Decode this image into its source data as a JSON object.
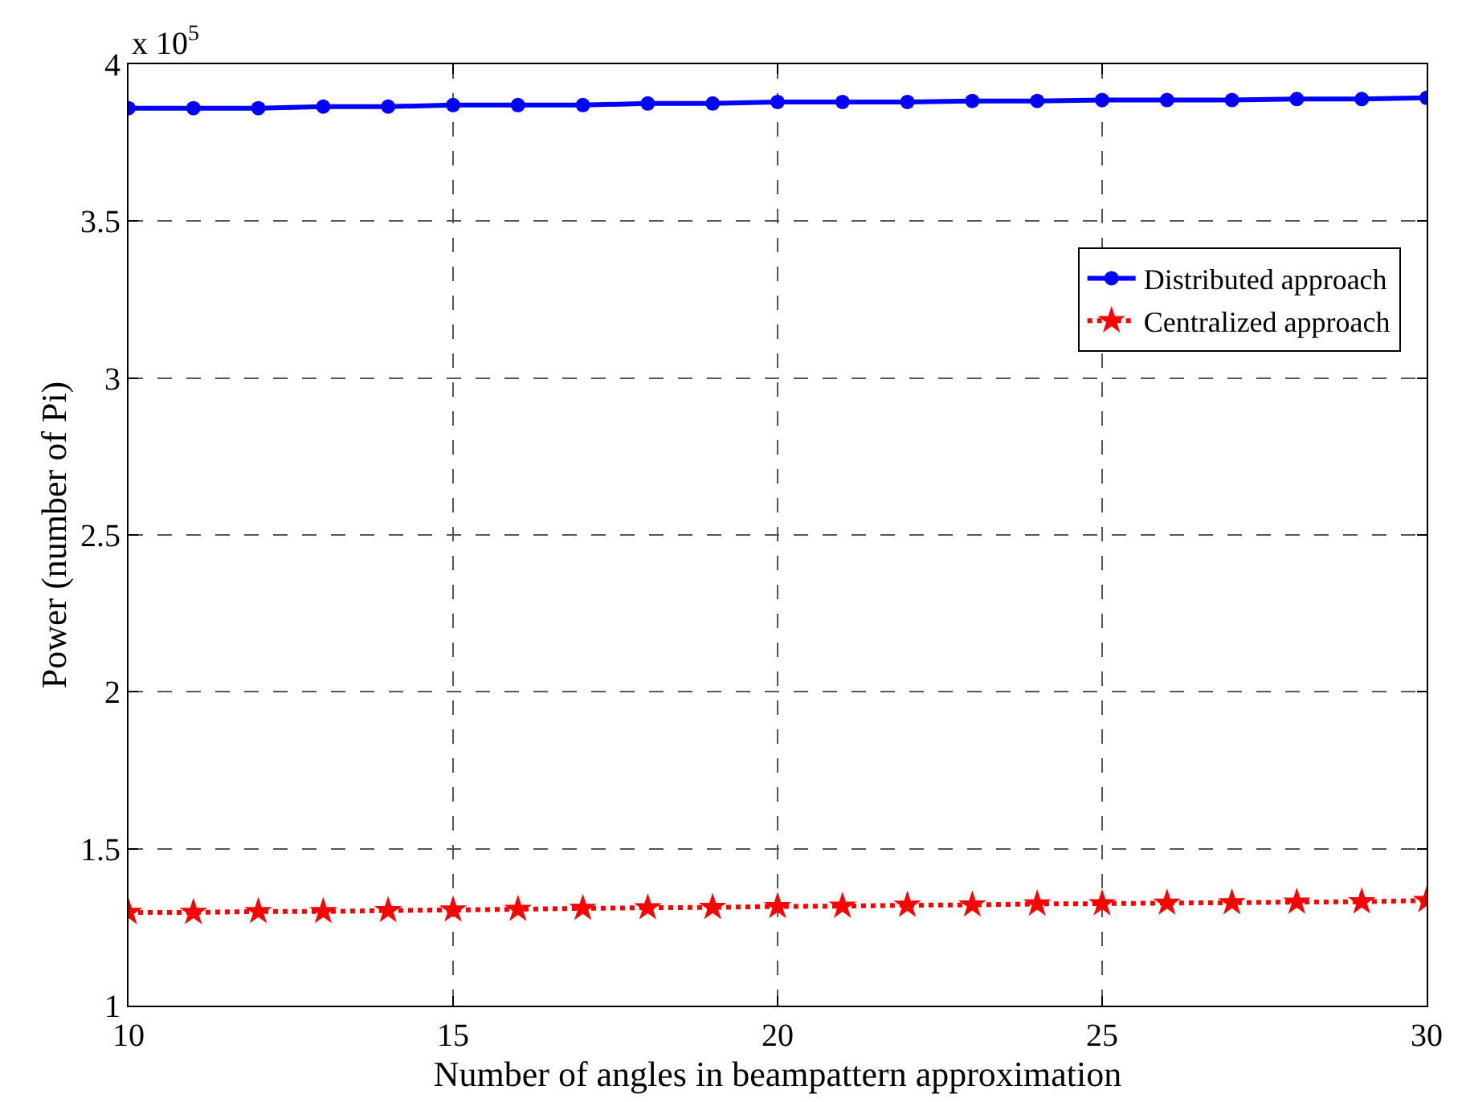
{
  "chart_data": {
    "type": "line",
    "xlabel": "Number of angles in beampattern approximation",
    "ylabel": "Power (number of Pi)",
    "annotations": [
      "x 10$^{5}$"
    ],
    "x": [
      10,
      11,
      12,
      13,
      14,
      15,
      16,
      17,
      18,
      19,
      20,
      21,
      22,
      23,
      24,
      25,
      26,
      27,
      28,
      29,
      30
    ],
    "series": [
      {
        "name": "Distributed approach",
        "color": "#0000ff",
        "marker": "circle",
        "line_style": "solid",
        "values": [
          3.86,
          3.86,
          3.86,
          3.865,
          3.865,
          3.87,
          3.87,
          3.87,
          3.875,
          3.875,
          3.88,
          3.88,
          3.88,
          3.883,
          3.883,
          3.886,
          3.886,
          3.886,
          3.889,
          3.889,
          3.893
        ]
      },
      {
        "name": "Centralized approach",
        "color": "#ff0000",
        "marker": "star",
        "line_style": "dotted",
        "values": [
          1.297,
          1.297,
          1.3,
          1.3,
          1.303,
          1.305,
          1.307,
          1.31,
          1.312,
          1.313,
          1.316,
          1.317,
          1.32,
          1.321,
          1.324,
          1.325,
          1.327,
          1.328,
          1.33,
          1.331,
          1.335
        ]
      }
    ],
    "xlim": [
      10,
      30
    ],
    "xticks": [
      10,
      15,
      20,
      25,
      30
    ],
    "ylim": [
      1,
      4
    ],
    "yticks": [
      1,
      1.5,
      2,
      2.5,
      3,
      3.5,
      4
    ],
    "grid": true,
    "legend": "right"
  }
}
